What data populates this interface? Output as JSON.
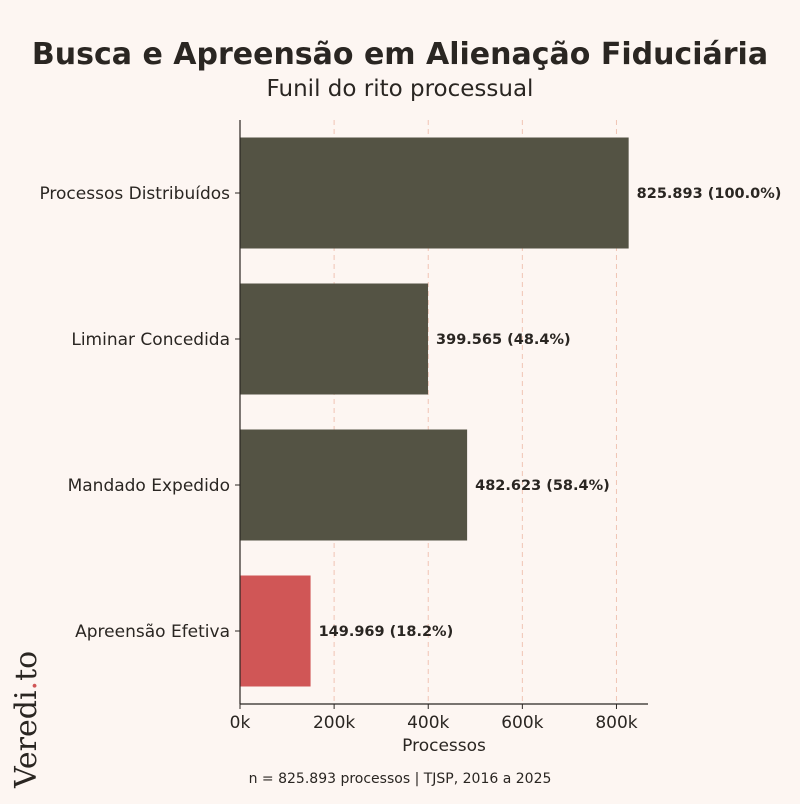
{
  "chart_data": {
    "type": "bar",
    "orientation": "horizontal",
    "title": "Busca e Apreensão em Alienação Fiduciária",
    "subtitle": "Funil do rito processual",
    "categories": [
      "Processos Distribuídos",
      "Liminar Concedida",
      "Mandado Expedido",
      "Apreensão Efetiva"
    ],
    "values": [
      825893,
      399565,
      482623,
      149969
    ],
    "data_labels": [
      "825.893 (100.0%)",
      "399.565 (48.4%)",
      "482.623 (58.4%)",
      "149.969 (18.2%)"
    ],
    "bar_colors": [
      "#545344",
      "#545344",
      "#545344",
      "#d05656"
    ],
    "xlabel": "Processos",
    "ylabel": "",
    "xlim": [
      0,
      867000
    ],
    "xticks": [
      0,
      200000,
      400000,
      600000,
      800000
    ],
    "xtick_labels": [
      "0k",
      "200k",
      "400k",
      "600k",
      "800k"
    ],
    "grid": "vertical dashed",
    "grid_color": "#f0c4b4",
    "caption": "n = 825.893 processos | TJSP, 2016 a 2025"
  },
  "logo": {
    "text": "Veredi.to",
    "dot_color": "#d05656"
  },
  "background": "#fdf6f2"
}
